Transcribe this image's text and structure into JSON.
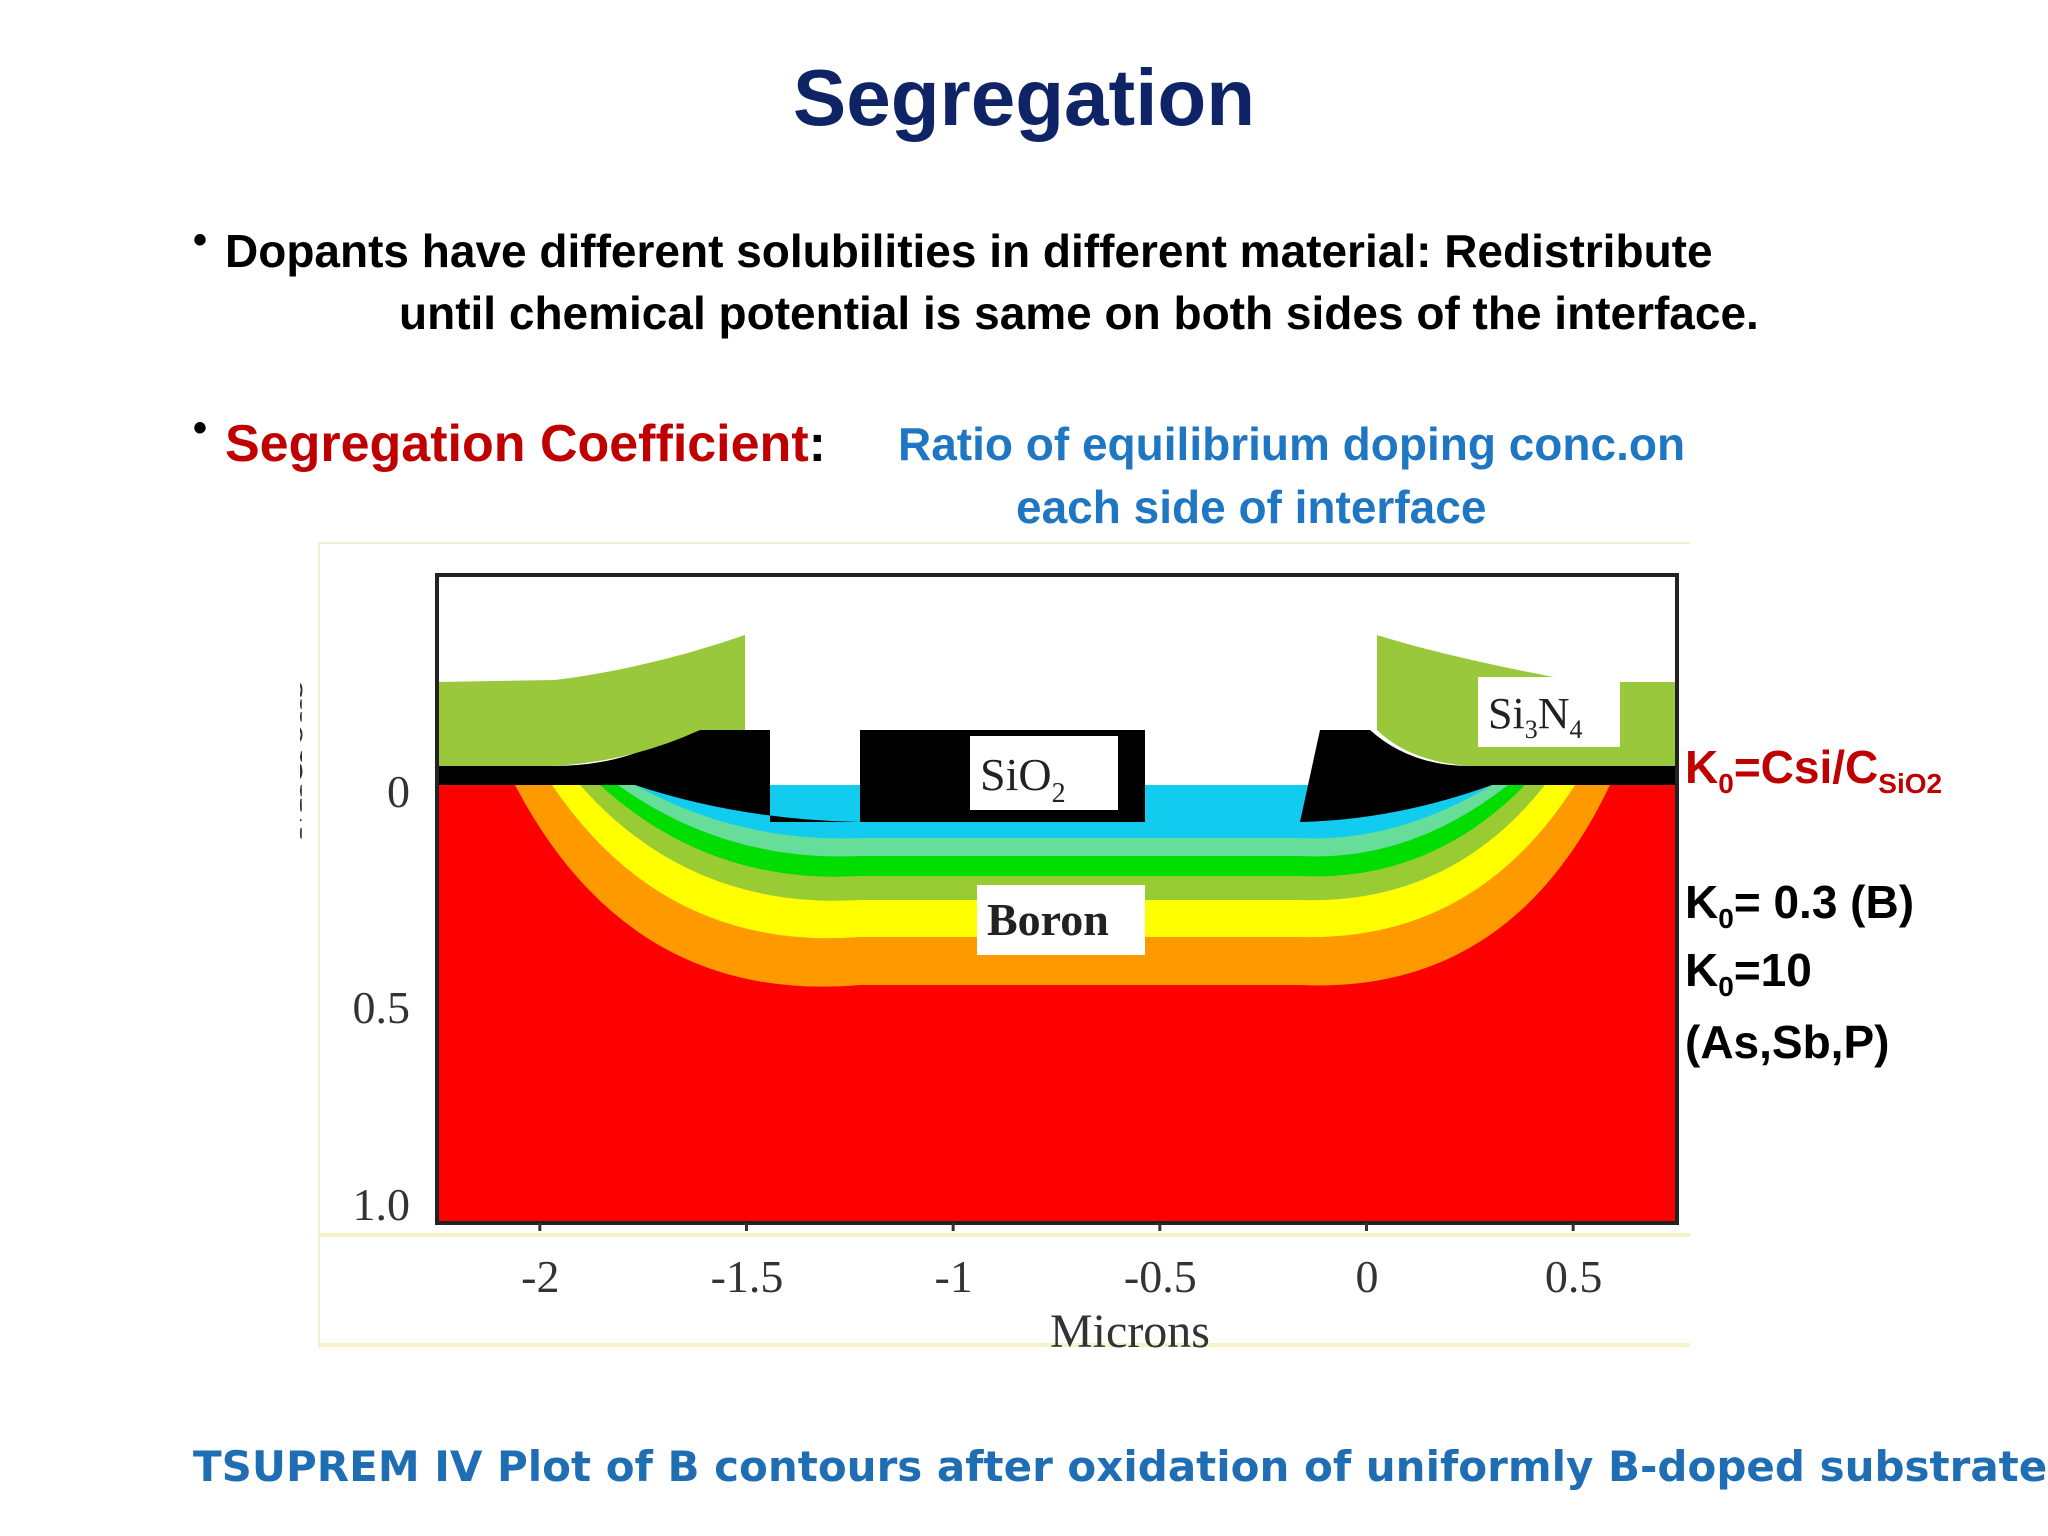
{
  "slide": {
    "title": "Segregation",
    "bullet1": {
      "line1": "Dopants have different solubilities in different material:  Redistribute",
      "line2": "until chemical potential is same on both sides of the interface."
    },
    "bullet2": {
      "term": "Segregation Coefficient",
      "colon": ":",
      "definition_line1": "Ratio of equilibrium doping conc.on",
      "definition_line2": "each side of interface"
    },
    "bullet_symbol": "•",
    "k_definition": {
      "base": "K",
      "sub0": "0",
      "eq": "=Csi/C",
      "subSiO2": "SiO2"
    },
    "k_values": [
      {
        "base": "K",
        "sub": "0",
        "rest": "= 0.3 (B)"
      },
      {
        "base": "K",
        "sub": "0",
        "rest": "=10"
      },
      {
        "base": "",
        "sub": "",
        "rest": "(As,Sb,P)"
      }
    ],
    "caption": "TSUPREM  IV  Plot of B contours after oxidation of uniformly B-doped substrate",
    "colors": {
      "title": "#0f2466",
      "term": "#c00000",
      "definition": "#1f77c4",
      "caption": "#1f6eb4"
    }
  },
  "chart_data": {
    "type": "heatmap",
    "xlabel": "Microns",
    "ylabel": "Microns",
    "x_ticks": [
      "-2",
      "-1.5",
      "-1",
      "-0.5",
      "0",
      "0.5"
    ],
    "y_ticks": [
      "0",
      "0.5",
      "1.0"
    ],
    "xlim": [
      -2.25,
      0.75
    ],
    "ylim": [
      1.0,
      -0.5
    ],
    "y_inverted": true,
    "regions": [
      {
        "label": "Si3N4",
        "color": "#99c83c"
      },
      {
        "label": "SiO2",
        "color": "#000000"
      },
      {
        "label": "Boron",
        "color": "#ff0000"
      }
    ],
    "boron_contour_colors": [
      "#ff0000",
      "#ff9900",
      "#ffff00",
      "#99cc33",
      "#00dd00",
      "#66dd99",
      "#11ccee"
    ],
    "labels": {
      "nitride_base": "Si",
      "nitride_sub1": "3",
      "nitride_mid": "N",
      "nitride_sub2": "4",
      "oxide_base": "SiO",
      "oxide_sub": "2",
      "boron": "Boron"
    }
  }
}
